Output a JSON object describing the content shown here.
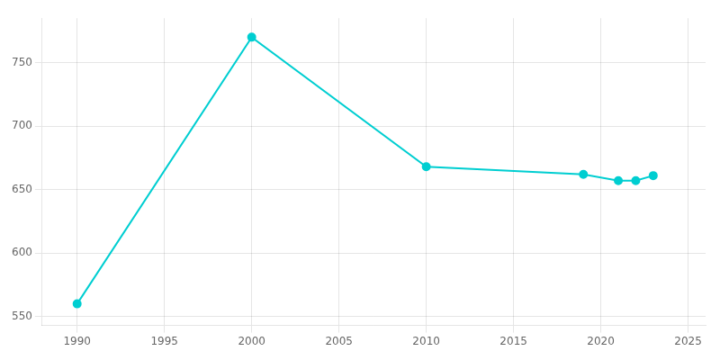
{
  "chart_data": {
    "type": "line",
    "x": [
      1990,
      2000,
      2010,
      2019,
      2021,
      2022,
      2023
    ],
    "values": [
      560,
      770,
      668,
      662,
      657,
      657,
      661
    ],
    "color": "#00CED1",
    "marker": "circle",
    "xlim": [
      1988,
      2026
    ],
    "ylim": [
      543,
      785
    ],
    "xticks": [
      1990,
      1995,
      2000,
      2005,
      2010,
      2015,
      2020,
      2025
    ],
    "yticks": [
      550,
      600,
      650,
      700,
      750
    ],
    "grid": true
  }
}
